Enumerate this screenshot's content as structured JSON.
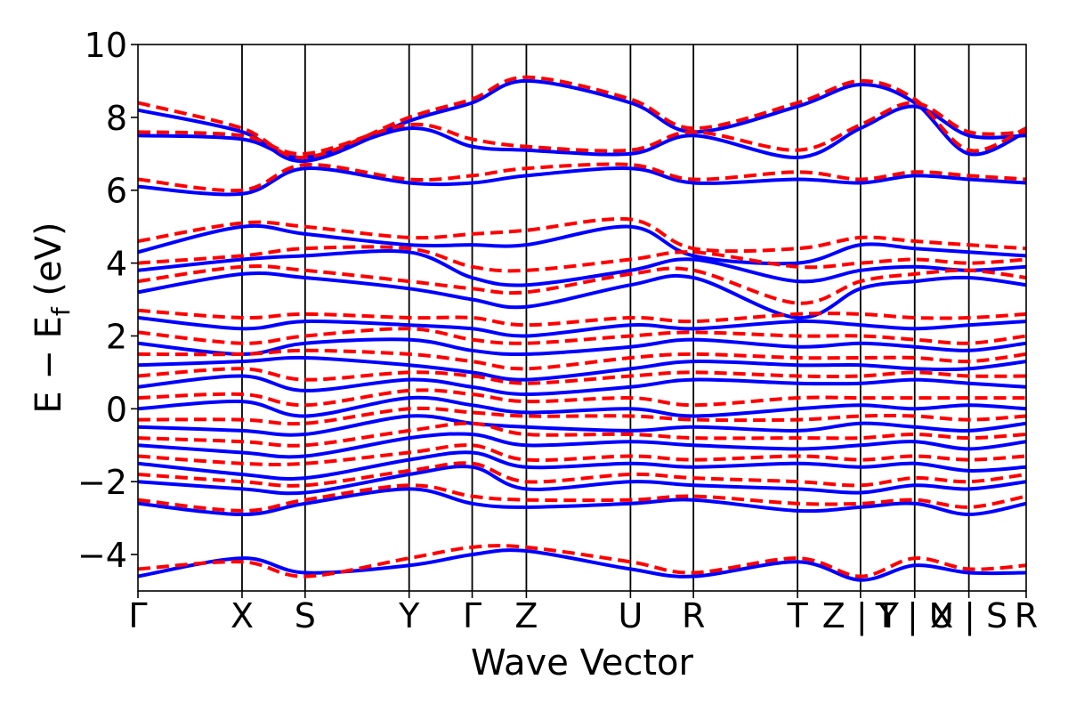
{
  "chart_data": {
    "type": "line",
    "title": "",
    "xlabel": "Wave Vector",
    "ylabel_parts": [
      "E − E",
      "f",
      " (eV)"
    ],
    "ylim": [
      -5,
      10
    ],
    "yticks": [
      {
        "value": 10,
        "label": "10"
      },
      {
        "value": 8,
        "label": "8"
      },
      {
        "value": 6,
        "label": "6"
      },
      {
        "value": 4,
        "label": "4"
      },
      {
        "value": 2,
        "label": "2"
      },
      {
        "value": 0,
        "label": "0"
      },
      {
        "value": -2,
        "label": "−2"
      },
      {
        "value": -4,
        "label": "−4"
      }
    ],
    "k_path_range": [
      0,
      1
    ],
    "k_points": [
      {
        "label": "Γ",
        "position": 0.0
      },
      {
        "label": "X",
        "position": 0.1172
      },
      {
        "label": "S",
        "position": 0.1882
      },
      {
        "label": "Y",
        "position": 0.3053
      },
      {
        "label": "Γ",
        "position": 0.3763
      },
      {
        "label": "Z",
        "position": 0.4373
      },
      {
        "label": "U",
        "position": 0.5545
      },
      {
        "label": "R",
        "position": 0.6254
      },
      {
        "label": "T",
        "position": 0.7426
      },
      {
        "label": "Z | Y",
        "position": 0.8135
      },
      {
        "label": "T | U",
        "position": 0.8745
      },
      {
        "label": "X | S",
        "position": 0.9355
      },
      {
        "label": "R",
        "position": 1.0
      }
    ],
    "gridlines": "vertical at high-symmetry k-points",
    "legend": "none",
    "series": [
      {
        "style": "solid",
        "color": "#0000ff",
        "bands": [
          [
            -4.6,
            -4.1,
            -4.5,
            -4.3,
            -4.0,
            -3.9,
            -4.4,
            -4.6,
            -4.2,
            -4.7,
            -4.3,
            -4.5,
            -4.5
          ],
          [
            -2.6,
            -2.9,
            -2.6,
            -2.2,
            -2.6,
            -2.7,
            -2.6,
            -2.5,
            -2.8,
            -2.7,
            -2.6,
            -2.9,
            -2.6
          ],
          [
            -2.0,
            -2.2,
            -2.3,
            -1.8,
            -1.6,
            -2.2,
            -2.0,
            -2.1,
            -2.2,
            -2.3,
            -2.1,
            -2.2,
            -2.0
          ],
          [
            -1.5,
            -1.8,
            -1.9,
            -1.4,
            -1.2,
            -1.6,
            -1.5,
            -1.6,
            -1.5,
            -1.6,
            -1.5,
            -1.7,
            -1.6
          ],
          [
            -1.0,
            -1.2,
            -1.3,
            -0.8,
            -0.7,
            -1.0,
            -0.9,
            -1.0,
            -1.1,
            -1.0,
            -0.9,
            -1.1,
            -0.9
          ],
          [
            -0.5,
            -0.6,
            -0.7,
            -0.2,
            -0.4,
            -0.5,
            -0.6,
            -0.5,
            -0.6,
            -0.4,
            -0.5,
            -0.6,
            -0.4
          ],
          [
            0.0,
            0.2,
            -0.2,
            0.3,
            0.1,
            -0.1,
            0.0,
            -0.2,
            0.0,
            0.1,
            0.0,
            0.1,
            0.0
          ],
          [
            0.6,
            0.9,
            0.5,
            0.8,
            0.6,
            0.4,
            0.6,
            0.8,
            0.7,
            0.7,
            0.8,
            0.7,
            0.6
          ],
          [
            1.2,
            1.3,
            1.4,
            1.2,
            1.0,
            0.8,
            1.1,
            1.3,
            1.2,
            1.2,
            1.1,
            1.1,
            1.3
          ],
          [
            1.8,
            1.5,
            1.8,
            1.9,
            1.6,
            1.5,
            1.7,
            1.9,
            1.7,
            1.8,
            1.7,
            1.6,
            1.8
          ],
          [
            2.5,
            2.2,
            2.4,
            2.3,
            2.2,
            2.0,
            2.3,
            2.2,
            2.4,
            2.3,
            2.2,
            2.3,
            2.4
          ],
          [
            3.2,
            3.7,
            3.6,
            3.3,
            3.0,
            2.8,
            3.4,
            3.6,
            2.5,
            3.3,
            3.5,
            3.6,
            3.4
          ],
          [
            3.8,
            4.1,
            4.2,
            4.3,
            3.6,
            3.4,
            3.8,
            4.1,
            3.5,
            3.8,
            3.9,
            3.8,
            3.9
          ],
          [
            4.3,
            5.0,
            4.8,
            4.5,
            4.5,
            4.5,
            5.0,
            4.2,
            4.0,
            4.5,
            4.4,
            4.3,
            4.2
          ],
          [
            6.1,
            5.9,
            6.6,
            6.2,
            6.2,
            6.4,
            6.6,
            6.2,
            6.3,
            6.2,
            6.4,
            6.3,
            6.2
          ],
          [
            7.5,
            7.4,
            6.9,
            7.7,
            7.2,
            7.1,
            7.0,
            7.5,
            6.9,
            7.7,
            8.3,
            7.5,
            7.5
          ],
          [
            8.2,
            7.6,
            6.8,
            7.9,
            8.4,
            9.0,
            8.4,
            7.6,
            8.3,
            8.9,
            8.4,
            7.0,
            7.6
          ]
        ]
      },
      {
        "style": "dashed",
        "color": "#ff0000",
        "bands": [
          [
            -4.4,
            -4.2,
            -4.6,
            -4.1,
            -3.8,
            -3.8,
            -4.2,
            -4.5,
            -4.1,
            -4.6,
            -4.1,
            -4.4,
            -4.3
          ],
          [
            -2.5,
            -2.8,
            -2.5,
            -2.1,
            -2.4,
            -2.5,
            -2.5,
            -2.4,
            -2.6,
            -2.6,
            -2.5,
            -2.7,
            -2.4
          ],
          [
            -1.8,
            -2.0,
            -2.1,
            -1.7,
            -1.5,
            -2.0,
            -1.8,
            -1.9,
            -2.0,
            -2.1,
            -1.9,
            -2.0,
            -1.8
          ],
          [
            -1.3,
            -1.5,
            -1.5,
            -1.2,
            -1.0,
            -1.4,
            -1.3,
            -1.4,
            -1.3,
            -1.4,
            -1.3,
            -1.4,
            -1.3
          ],
          [
            -0.8,
            -0.9,
            -1.0,
            -0.6,
            -0.4,
            -0.7,
            -0.7,
            -0.8,
            -0.8,
            -0.8,
            -0.7,
            -0.8,
            -0.7
          ],
          [
            -0.3,
            -0.3,
            -0.4,
            0.0,
            -0.1,
            -0.2,
            -0.2,
            -0.3,
            -0.3,
            -0.2,
            -0.2,
            -0.3,
            -0.2
          ],
          [
            0.3,
            0.4,
            0.1,
            0.5,
            0.4,
            0.2,
            0.3,
            0.1,
            0.3,
            0.3,
            0.3,
            0.3,
            0.3
          ],
          [
            0.9,
            1.1,
            0.8,
            1.0,
            0.9,
            0.7,
            0.9,
            1.0,
            0.9,
            0.9,
            1.0,
            0.9,
            0.9
          ],
          [
            1.5,
            1.5,
            1.6,
            1.5,
            1.3,
            1.1,
            1.4,
            1.5,
            1.4,
            1.4,
            1.4,
            1.3,
            1.5
          ],
          [
            2.1,
            1.8,
            2.0,
            2.2,
            1.9,
            1.8,
            2.0,
            2.1,
            2.0,
            2.0,
            1.9,
            1.8,
            2.0
          ],
          [
            2.7,
            2.5,
            2.6,
            2.5,
            2.5,
            2.3,
            2.5,
            2.4,
            2.6,
            2.6,
            2.5,
            2.5,
            2.6
          ],
          [
            3.5,
            3.9,
            3.8,
            3.5,
            3.3,
            3.2,
            3.7,
            3.8,
            2.9,
            3.5,
            3.7,
            3.8,
            3.6
          ],
          [
            4.0,
            4.2,
            4.4,
            4.4,
            3.9,
            3.8,
            4.1,
            4.3,
            3.9,
            4.0,
            4.1,
            4.0,
            4.1
          ],
          [
            4.6,
            5.1,
            5.0,
            4.7,
            4.8,
            4.9,
            5.2,
            4.4,
            4.4,
            4.7,
            4.6,
            4.5,
            4.4
          ],
          [
            6.3,
            6.0,
            6.7,
            6.3,
            6.4,
            6.6,
            6.7,
            6.3,
            6.5,
            6.3,
            6.5,
            6.4,
            6.3
          ],
          [
            7.6,
            7.5,
            7.0,
            7.8,
            7.4,
            7.2,
            7.1,
            7.6,
            7.1,
            7.8,
            8.4,
            7.6,
            7.6
          ],
          [
            8.4,
            7.7,
            6.9,
            8.0,
            8.5,
            9.1,
            8.5,
            7.7,
            8.4,
            9.0,
            8.5,
            7.1,
            7.7
          ]
        ]
      }
    ]
  }
}
